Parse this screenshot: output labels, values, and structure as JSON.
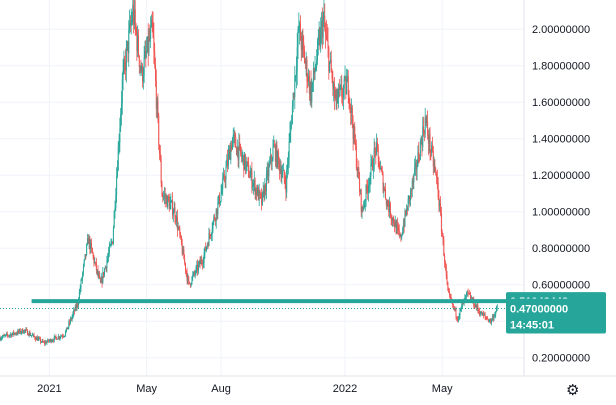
{
  "chart_data": {
    "type": "candlestick",
    "title": "",
    "xlabel": "",
    "ylabel": "",
    "ylim": [
      0.1,
      2.16
    ],
    "x_axis_labels": [
      {
        "date": "2021-01-01",
        "label": "2021"
      },
      {
        "date": "2021-05-01",
        "label": "May"
      },
      {
        "date": "2021-08-01",
        "label": "Aug"
      },
      {
        "date": "2022-01-01",
        "label": "2022"
      },
      {
        "date": "2022-05-01",
        "label": "May"
      }
    ],
    "x_range": [
      "2020-11-01",
      "2022-08-10"
    ],
    "y_tick_labels": [
      "0.20000000",
      "0.40000000",
      "0.60000000",
      "0.80000000",
      "1.00000000",
      "1.20000000",
      "1.40000000",
      "1.60000000",
      "1.80000000",
      "2.00000000"
    ],
    "y_ticks": [
      0.2,
      0.4,
      0.6,
      0.8,
      1.0,
      1.2,
      1.4,
      1.6,
      1.8,
      2.0
    ],
    "price_path": [
      {
        "date": "2020-11-01",
        "value": 0.31
      },
      {
        "date": "2020-12-01",
        "value": 0.35
      },
      {
        "date": "2020-12-25",
        "value": 0.28
      },
      {
        "date": "2021-01-20",
        "value": 0.33
      },
      {
        "date": "2021-02-05",
        "value": 0.5
      },
      {
        "date": "2021-02-18",
        "value": 0.85
      },
      {
        "date": "2021-03-05",
        "value": 0.6
      },
      {
        "date": "2021-03-20",
        "value": 0.85
      },
      {
        "date": "2021-04-01",
        "value": 1.7
      },
      {
        "date": "2021-04-14",
        "value": 2.1
      },
      {
        "date": "2021-04-25",
        "value": 1.75
      },
      {
        "date": "2021-05-08",
        "value": 2.0
      },
      {
        "date": "2021-05-20",
        "value": 1.1
      },
      {
        "date": "2021-06-05",
        "value": 1.0
      },
      {
        "date": "2021-06-22",
        "value": 0.6
      },
      {
        "date": "2021-07-10",
        "value": 0.75
      },
      {
        "date": "2021-08-01",
        "value": 1.1
      },
      {
        "date": "2021-08-15",
        "value": 1.4
      },
      {
        "date": "2021-09-01",
        "value": 1.25
      },
      {
        "date": "2021-09-20",
        "value": 1.05
      },
      {
        "date": "2021-10-05",
        "value": 1.35
      },
      {
        "date": "2021-10-20",
        "value": 1.15
      },
      {
        "date": "2021-11-05",
        "value": 2.0
      },
      {
        "date": "2021-11-20",
        "value": 1.65
      },
      {
        "date": "2021-12-05",
        "value": 2.05
      },
      {
        "date": "2021-12-20",
        "value": 1.6
      },
      {
        "date": "2022-01-05",
        "value": 1.7
      },
      {
        "date": "2022-01-22",
        "value": 1.0
      },
      {
        "date": "2022-02-08",
        "value": 1.35
      },
      {
        "date": "2022-02-22",
        "value": 1.05
      },
      {
        "date": "2022-03-10",
        "value": 0.85
      },
      {
        "date": "2022-03-28",
        "value": 1.2
      },
      {
        "date": "2022-04-10",
        "value": 1.5
      },
      {
        "date": "2022-04-25",
        "value": 1.15
      },
      {
        "date": "2022-05-08",
        "value": 0.55
      },
      {
        "date": "2022-05-20",
        "value": 0.42
      },
      {
        "date": "2022-06-01",
        "value": 0.55
      },
      {
        "date": "2022-06-18",
        "value": 0.44
      },
      {
        "date": "2022-06-30",
        "value": 0.4
      },
      {
        "date": "2022-07-08",
        "value": 0.47
      }
    ],
    "levels": [
      {
        "kind": "horizontal-line",
        "value": 0.51048442,
        "label": "0.51048442",
        "color": "#26a69a"
      },
      {
        "kind": "last-price",
        "value": 0.47,
        "label": "0.47000000",
        "countdown": "14:45:01",
        "color": "#26a69a"
      }
    ],
    "colors": {
      "up": "#26a69a",
      "down": "#ef5350",
      "grid": "#f0f3fa",
      "axis_text": "#131722"
    },
    "grid": true,
    "legend": "none"
  },
  "ui": {
    "settings_icon": "gear-icon",
    "settings_glyph": "⚙"
  }
}
